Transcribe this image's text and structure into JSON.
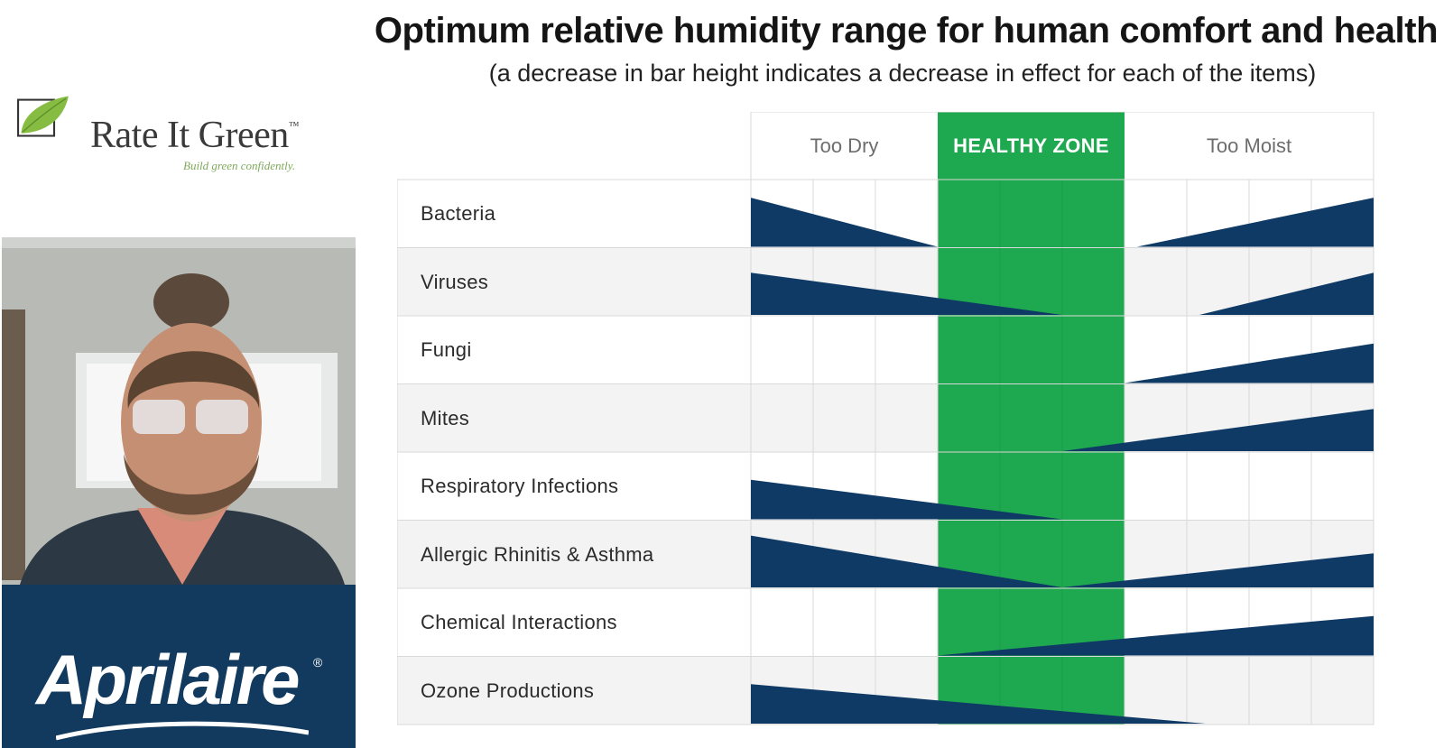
{
  "logo": {
    "brand": "Rate It Green",
    "trademark": "™",
    "tagline": "Build green confidently."
  },
  "sponsor": {
    "name": "Aprilaire",
    "registered": "®"
  },
  "colors": {
    "navy": "#0f3a66",
    "healthy_green": "#1ea84f",
    "grid_line": "#d9d9d9",
    "row_alt": "#f3f3f3",
    "sponsor_bg": "#123a5e",
    "leaf_green": "#7fb83e"
  },
  "chart_data": {
    "type": "table",
    "title": "Optimum relative humidity range for human comfort and health",
    "subtitle": "(a decrease in bar height indicates a decrease in effect for each of the items)",
    "zones": [
      {
        "label": "Too Dry",
        "cells": 3
      },
      {
        "label": "HEALTHY ZONE",
        "cells": 3
      },
      {
        "label": "Too Moist",
        "cells": 4
      }
    ],
    "rows": [
      {
        "label": "Bacteria",
        "dry_end_cell": 3.0,
        "moist_start_cell": 6.2,
        "dry_level": 0.72,
        "moist_level": 0.72
      },
      {
        "label": "Viruses",
        "dry_end_cell": 5.0,
        "moist_start_cell": 7.2,
        "dry_level": 0.62,
        "moist_level": 0.62
      },
      {
        "label": "Fungi",
        "dry_end_cell": null,
        "moist_start_cell": 6.0,
        "dry_level": 0,
        "moist_level": 0.58
      },
      {
        "label": "Mites",
        "dry_end_cell": null,
        "moist_start_cell": 5.0,
        "dry_level": 0,
        "moist_level": 0.62
      },
      {
        "label": "Respiratory Infections",
        "dry_end_cell": 5.0,
        "moist_start_cell": null,
        "dry_level": 0.58,
        "moist_level": 0
      },
      {
        "label": "Allergic Rhinitis & Asthma",
        "dry_end_cell": 5.0,
        "moist_start_cell": 5.0,
        "dry_level": 0.76,
        "moist_level": 0.5
      },
      {
        "label": "Chemical Interactions",
        "dry_end_cell": null,
        "moist_start_cell": 3.0,
        "dry_level": 0,
        "moist_level": 0.58
      },
      {
        "label": "Ozone Productions",
        "dry_end_cell": 7.3,
        "moist_start_cell": null,
        "dry_level": 0.58,
        "moist_level": 0
      }
    ]
  }
}
